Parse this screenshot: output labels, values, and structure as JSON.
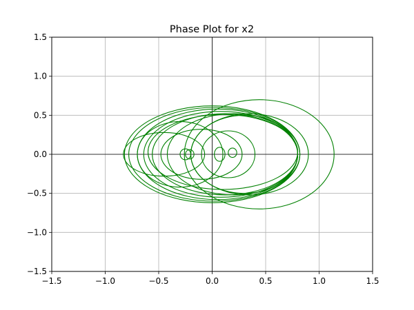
{
  "chart_data": {
    "type": "line",
    "title": "Phase Plot for x2",
    "xlabel": "",
    "ylabel": "",
    "xlim": [
      -1.5,
      1.5
    ],
    "ylim": [
      -1.5,
      1.5
    ],
    "x_ticks": [
      -1.5,
      -1.0,
      -0.5,
      0.0,
      0.5,
      1.0,
      1.5
    ],
    "x_tick_labels": [
      "−1.5",
      "−1.0",
      "−0.5",
      "0.0",
      "0.5",
      "1.0",
      "1.5"
    ],
    "y_ticks": [
      1.5,
      1.0,
      0.5,
      0.0,
      -0.5,
      -1.0,
      -1.5
    ],
    "y_tick_labels": [
      "1.5",
      "1.0",
      "0.5",
      "0.0",
      "−0.5",
      "−1.0",
      "−1.5"
    ],
    "grid": true,
    "zero_axes": true,
    "line_color": "#008000",
    "series": [
      {
        "style": "ellipses",
        "loops": [
          {
            "cx": 0.0,
            "cy": 0.0,
            "rx": 0.82,
            "ry": 0.62
          },
          {
            "cx": 0.02,
            "cy": 0.0,
            "rx": 0.8,
            "ry": 0.6
          },
          {
            "cx": 0.05,
            "cy": 0.0,
            "rx": 0.75,
            "ry": 0.58
          },
          {
            "cx": 0.08,
            "cy": 0.0,
            "rx": 0.72,
            "ry": 0.55
          },
          {
            "cx": 0.1,
            "cy": 0.03,
            "rx": 0.7,
            "ry": 0.48
          },
          {
            "cx": 0.12,
            "cy": 0.0,
            "rx": 0.68,
            "ry": 0.52
          },
          {
            "cx": 0.44,
            "cy": 0.0,
            "rx": 0.7,
            "ry": 0.7
          },
          {
            "cx": 0.2,
            "cy": 0.0,
            "rx": 0.62,
            "ry": 0.52
          },
          {
            "cx": 0.35,
            "cy": 0.0,
            "rx": 0.55,
            "ry": 0.52
          },
          {
            "cx": 0.3,
            "cy": 0.0,
            "rx": 0.5,
            "ry": 0.5
          },
          {
            "cx": -0.45,
            "cy": 0.0,
            "rx": 0.38,
            "ry": 0.28
          },
          {
            "cx": -0.3,
            "cy": 0.0,
            "rx": 0.4,
            "ry": 0.42
          },
          {
            "cx": -0.1,
            "cy": 0.0,
            "rx": 0.38,
            "ry": 0.32
          },
          {
            "cx": 0.15,
            "cy": 0.0,
            "rx": 0.25,
            "ry": 0.3
          },
          {
            "cx": -0.25,
            "cy": 0.0,
            "rx": 0.05,
            "ry": 0.07
          },
          {
            "cx": -0.21,
            "cy": 0.0,
            "rx": 0.04,
            "ry": 0.06
          },
          {
            "cx": 0.07,
            "cy": 0.0,
            "rx": 0.05,
            "ry": 0.09
          },
          {
            "cx": 0.19,
            "cy": 0.02,
            "rx": 0.04,
            "ry": 0.06
          }
        ]
      }
    ]
  }
}
